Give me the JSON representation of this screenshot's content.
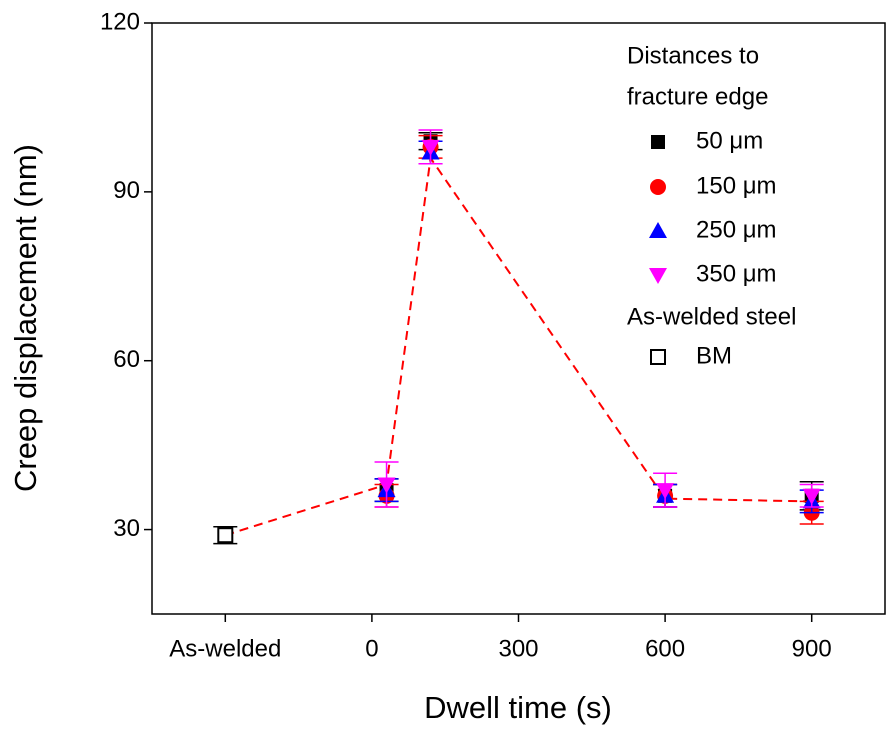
{
  "chart_data": {
    "type": "scatter",
    "x_label": "Dwell time (s)",
    "y_label": "Creep displacement (nm)",
    "xlim": [
      -450,
      1050
    ],
    "ylim": [
      15,
      120
    ],
    "xticks": [
      {
        "value": -300,
        "label": "As-welded"
      },
      0,
      300,
      600,
      900
    ],
    "yticks": [
      30,
      60,
      90,
      120
    ],
    "legend_title": [
      "Distances to",
      "fracture edge"
    ],
    "legend_title_2": "As-welded steel",
    "series": [
      {
        "name": "50 μm",
        "color": "#000000",
        "marker": "square",
        "x": [
          30,
          120,
          600,
          900
        ],
        "values": [
          37,
          99,
          36,
          36
        ],
        "errors": [
          2,
          1.5,
          2,
          2.5
        ]
      },
      {
        "name": "150 μm",
        "color": "#ff0000",
        "marker": "circle",
        "x": [
          30,
          120,
          600,
          900
        ],
        "values": [
          36,
          98,
          36,
          33
        ],
        "errors": [
          2,
          2,
          2,
          2
        ]
      },
      {
        "name": "250 μm",
        "color": "#0000ff",
        "marker": "triangle",
        "x": [
          30,
          120,
          600,
          900
        ],
        "values": [
          37,
          97,
          36,
          35
        ],
        "errors": [
          2,
          2,
          2,
          2
        ]
      },
      {
        "name": "350 μm",
        "color": "#ff00ff",
        "marker": "triangle-down",
        "x": [
          30,
          120,
          600,
          900
        ],
        "values": [
          38,
          98,
          37,
          36
        ],
        "errors": [
          4,
          3,
          3,
          2
        ]
      },
      {
        "name": "BM",
        "color": "#000000",
        "marker": "square-open",
        "x": [
          -300
        ],
        "values": [
          29
        ],
        "errors": [
          1.5
        ]
      }
    ],
    "trend": {
      "color": "#ff0000",
      "x": [
        -300,
        30,
        120,
        600,
        900
      ],
      "values": [
        29,
        38,
        96,
        35.5,
        35
      ]
    }
  }
}
